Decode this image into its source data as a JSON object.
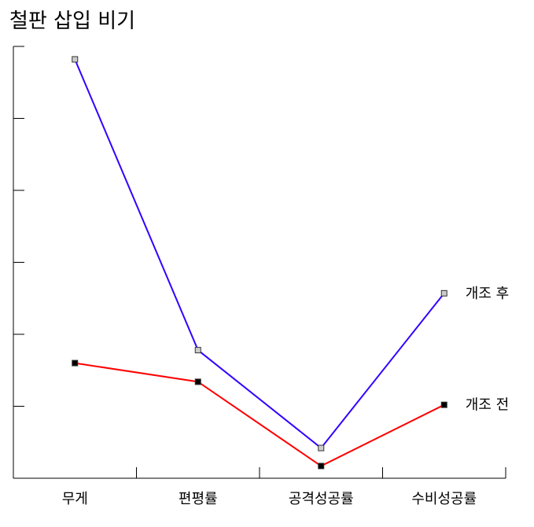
{
  "chart_data": {
    "type": "line",
    "title": "철판 삽입 비기",
    "xlabel": "",
    "ylabel": "",
    "categories": [
      "무게",
      "편평률",
      "공격성공률",
      "수비성공률"
    ],
    "ylim": [
      0,
      6
    ],
    "grid": false,
    "series": [
      {
        "name": "개조 후",
        "values": [
          5.82,
          1.78,
          0.42,
          2.57
        ],
        "color": "#3300ff",
        "marker_fill": "#cccccc"
      },
      {
        "name": "개조 전",
        "values": [
          1.6,
          1.34,
          0.17,
          1.02
        ],
        "color": "#ff0000",
        "marker_fill": "#000000"
      }
    ]
  }
}
